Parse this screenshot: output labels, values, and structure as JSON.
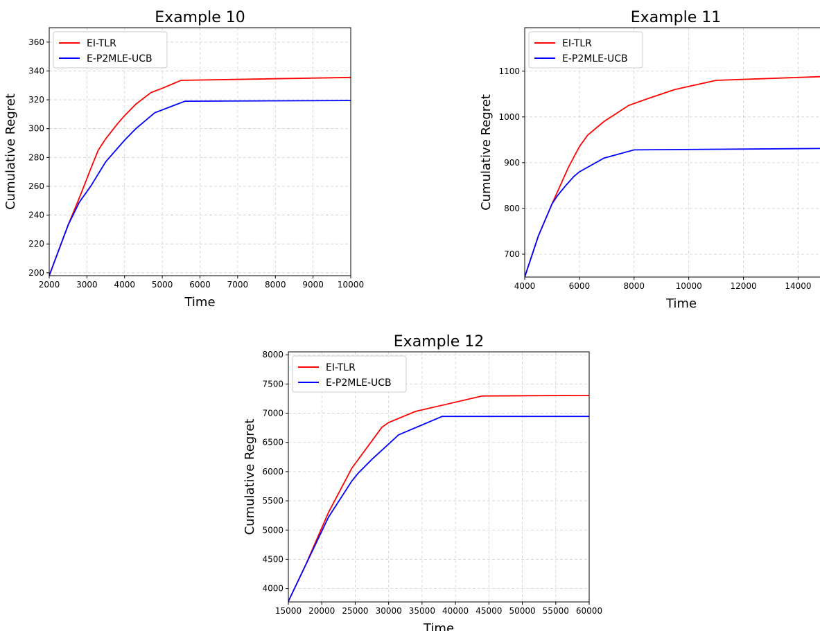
{
  "chart_data": [
    {
      "type": "line",
      "title": "Example 10",
      "xlabel": "Time",
      "ylabel": "Cumulative Regret",
      "xlim": [
        2000,
        10000
      ],
      "ylim": [
        198,
        370
      ],
      "xticks": [
        2000,
        3000,
        4000,
        5000,
        6000,
        7000,
        8000,
        9000,
        10000
      ],
      "yticks": [
        200,
        220,
        240,
        260,
        280,
        300,
        320,
        340,
        360
      ],
      "grid": true,
      "legend": "upper-left",
      "series": [
        {
          "name": "EI-TLR",
          "color": "#ff0000",
          "points": [
            [
              2000,
              198
            ],
            [
              2200,
              212
            ],
            [
              2500,
              233
            ],
            [
              2800,
              252
            ],
            [
              3100,
              272
            ],
            [
              3300,
              285
            ],
            [
              3500,
              293
            ],
            [
              3800,
              303
            ],
            [
              4000,
              309
            ],
            [
              4300,
              317
            ],
            [
              4700,
              325
            ],
            [
              5000,
              328
            ],
            [
              5500,
              333.5
            ],
            [
              10000,
              335.5
            ]
          ]
        },
        {
          "name": "E-P2MLE-UCB",
          "color": "#0000ff",
          "points": [
            [
              2000,
              198
            ],
            [
              2200,
              212
            ],
            [
              2500,
              233
            ],
            [
              2800,
              249
            ],
            [
              3100,
              260
            ],
            [
              3500,
              277
            ],
            [
              4000,
              292
            ],
            [
              4300,
              300
            ],
            [
              4800,
              311
            ],
            [
              5000,
              313
            ],
            [
              5600,
              319
            ],
            [
              10000,
              319.5
            ]
          ]
        }
      ]
    },
    {
      "type": "line",
      "title": "Example 11",
      "xlabel": "Time",
      "ylabel": "Cumulative Regret",
      "xlim": [
        4000,
        14800
      ],
      "ylim": [
        650,
        1195
      ],
      "xticks": [
        4000,
        6000,
        8000,
        10000,
        12000,
        14000
      ],
      "yticks": [
        700,
        800,
        900,
        1000,
        1100
      ],
      "grid": true,
      "legend": "upper-left",
      "series": [
        {
          "name": "EI-TLR",
          "color": "#ff0000",
          "points": [
            [
              4000,
              650
            ],
            [
              4500,
              740
            ],
            [
              5000,
              810
            ],
            [
              5300,
              850
            ],
            [
              5600,
              890
            ],
            [
              6000,
              935
            ],
            [
              6300,
              960
            ],
            [
              6900,
              990
            ],
            [
              7800,
              1025
            ],
            [
              8500,
              1040
            ],
            [
              9500,
              1060
            ],
            [
              11000,
              1080
            ],
            [
              14800,
              1088
            ]
          ]
        },
        {
          "name": "E-P2MLE-UCB",
          "color": "#0000ff",
          "points": [
            [
              4000,
              650
            ],
            [
              4500,
              740
            ],
            [
              5000,
              810
            ],
            [
              5200,
              828
            ],
            [
              5500,
              850
            ],
            [
              5800,
              870
            ],
            [
              6000,
              880
            ],
            [
              6900,
              910
            ],
            [
              8000,
              928
            ],
            [
              14800,
              931
            ]
          ]
        }
      ]
    },
    {
      "type": "line",
      "title": "Example 12",
      "xlabel": "Time",
      "ylabel": "Cumulative Regret",
      "xlim": [
        15000,
        60000
      ],
      "ylim": [
        3770,
        8050
      ],
      "xticks": [
        15000,
        20000,
        25000,
        30000,
        35000,
        40000,
        45000,
        50000,
        55000,
        60000
      ],
      "yticks": [
        4000,
        4500,
        5000,
        5500,
        6000,
        6500,
        7000,
        7500,
        8000
      ],
      "grid": true,
      "legend": "upper-left",
      "series": [
        {
          "name": "EI-TLR",
          "color": "#ff0000",
          "points": [
            [
              15000,
              3780
            ],
            [
              17500,
              4380
            ],
            [
              21000,
              5300
            ],
            [
              24500,
              6060
            ],
            [
              29000,
              6760
            ],
            [
              30000,
              6840
            ],
            [
              34000,
              7030
            ],
            [
              44000,
              7295
            ],
            [
              60000,
              7305
            ]
          ]
        },
        {
          "name": "E-P2MLE-UCB",
          "color": "#0000ff",
          "points": [
            [
              15000,
              3780
            ],
            [
              17500,
              4380
            ],
            [
              21000,
              5220
            ],
            [
              24500,
              5840
            ],
            [
              25500,
              5980
            ],
            [
              27500,
              6210
            ],
            [
              31500,
              6630
            ],
            [
              38000,
              6945
            ],
            [
              60000,
              6945
            ]
          ]
        }
      ]
    }
  ]
}
